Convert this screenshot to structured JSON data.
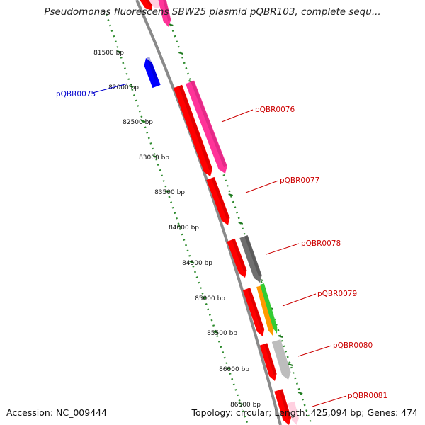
{
  "title": "Pseudomonas fluorescens SBW25 plasmid pQBR103, complete sequ...",
  "footer": {
    "accession": "Accession: NC_009444",
    "summary": "Topology: circular; Length: 425,094 bp; Genes: 474"
  },
  "ruler": {
    "unit": "bp",
    "ticks": [
      "81500 bp",
      "82000 bp",
      "82500 bp",
      "83000 bp",
      "83500 bp",
      "84000 bp",
      "84500 bp",
      "85000 bp",
      "85500 bp",
      "86000 bp",
      "86500 bp"
    ]
  },
  "gene_labels": [
    {
      "name": "pQBR0075",
      "color": "#0000cc"
    },
    {
      "name": "pQBR0076",
      "color": "#cc0000"
    },
    {
      "name": "pQBR0077",
      "color": "#cc0000"
    },
    {
      "name": "pQBR0078",
      "color": "#cc0000"
    },
    {
      "name": "pQBR0079",
      "color": "#cc0000"
    },
    {
      "name": "pQBR0080",
      "color": "#cc0000"
    },
    {
      "name": "pQBR0081",
      "color": "#cc0000"
    }
  ],
  "colors": {
    "backbone": "#8a8a8a",
    "ruler_dots": "#2e8b2e",
    "cds": "#ff0000",
    "rna_pink": "#ff3399",
    "rna_grey": "#6f6f6f",
    "light_grey": "#bdbdbd",
    "orange": "#ff9900",
    "green": "#33cc33",
    "blue": "#0000ff"
  }
}
